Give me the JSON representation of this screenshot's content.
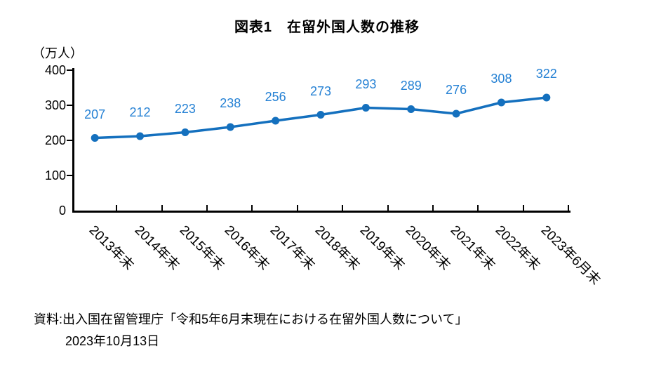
{
  "title": "図表1　在留外国人数の推移",
  "y_unit_label": "（万人）",
  "source": {
    "line1": "資料:出入国在留管理庁「令和5年6月末現在における在留外国人数について」",
    "line2": "2023年10月13日"
  },
  "colors": {
    "line": "#1470BE",
    "marker": "#1470BE",
    "data_label": "#2581D4",
    "axis": "#000000",
    "text": "#000000"
  },
  "chart_data": {
    "type": "line",
    "title": "図表1　在留外国人数の推移",
    "categories": [
      "2013年末",
      "2014年末",
      "2015年末",
      "2016年末",
      "2017年末",
      "2018年末",
      "2019年末",
      "2020年末",
      "2021年末",
      "2022年末",
      "2023年6月末"
    ],
    "values": [
      207,
      212,
      223,
      238,
      256,
      273,
      293,
      289,
      276,
      308,
      322
    ],
    "xlabel": "",
    "ylabel": "（万人）",
    "ylim": [
      0,
      400
    ],
    "yticks": [
      0,
      100,
      200,
      300,
      400
    ],
    "grid": false,
    "legend": "none",
    "data_labels_position": "above",
    "x_label_rotation_deg": 45
  }
}
